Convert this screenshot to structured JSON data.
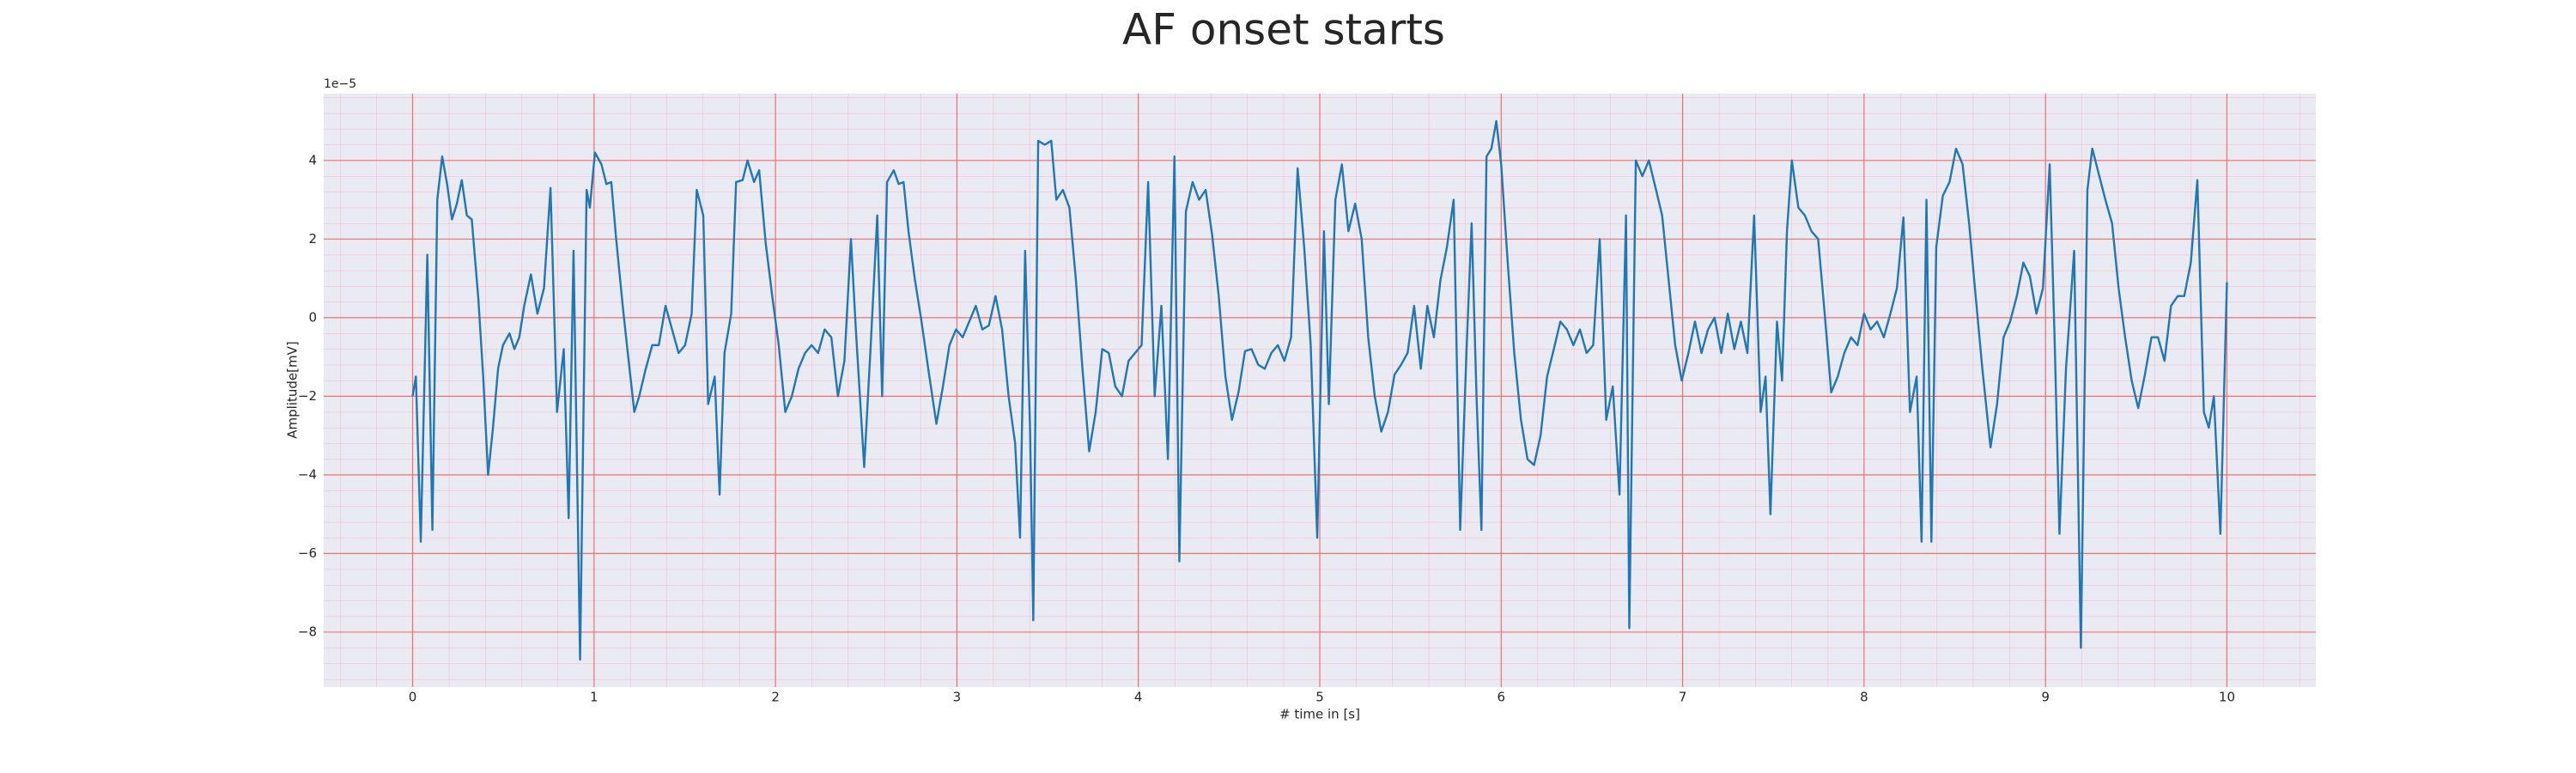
{
  "chart_data": {
    "type": "line",
    "title": "AF onset starts",
    "xlabel": "# time in [s]",
    "ylabel": "Amplitude[mV]",
    "y_offset_label": "1e−5",
    "color": "#1f77b4",
    "grid": true,
    "minor_grid": true,
    "xlim": [
      -0.49,
      10.49
    ],
    "ylim": [
      -9.4,
      5.7
    ],
    "xticks": [
      0,
      1,
      2,
      3,
      4,
      5,
      6,
      7,
      8,
      9,
      10
    ],
    "yticks": [
      {
        "value": -8,
        "label": "−8"
      },
      {
        "value": -6,
        "label": "−6"
      },
      {
        "value": -4,
        "label": "−4"
      },
      {
        "value": -2,
        "label": "−2"
      },
      0,
      2,
      4
    ],
    "x": [
      0,
      0.018,
      0.045,
      0.081,
      0.109,
      0.136,
      0.163,
      0.19,
      0.217,
      0.244,
      0.271,
      0.299,
      0.326,
      0.362,
      0.389,
      0.416,
      0.443,
      0.471,
      0.498,
      0.534,
      0.561,
      0.588,
      0.615,
      0.652,
      0.688,
      0.724,
      0.76,
      0.796,
      0.833,
      0.86,
      0.887,
      0.923,
      0.959,
      0.977,
      1.005,
      1.041,
      1.068,
      1.095,
      1.122,
      1.158,
      1.186,
      1.222,
      1.249,
      1.285,
      1.321,
      1.357,
      1.394,
      1.43,
      1.466,
      1.502,
      1.538,
      1.566,
      1.602,
      1.629,
      1.665,
      1.692,
      1.719,
      1.756,
      1.783,
      1.819,
      1.846,
      1.882,
      1.91,
      1.946,
      1.982,
      2.018,
      2.054,
      2.09,
      2.127,
      2.163,
      2.199,
      2.235,
      2.271,
      2.308,
      2.344,
      2.38,
      2.416,
      2.443,
      2.489,
      2.525,
      2.561,
      2.588,
      2.615,
      2.652,
      2.679,
      2.706,
      2.733,
      2.769,
      2.805,
      2.842,
      2.887,
      2.923,
      2.959,
      2.995,
      3.032,
      3.068,
      3.104,
      3.14,
      3.176,
      3.213,
      3.249,
      3.285,
      3.321,
      3.348,
      3.376,
      3.403,
      3.421,
      3.448,
      3.484,
      3.52,
      3.548,
      3.584,
      3.62,
      3.656,
      3.692,
      3.729,
      3.765,
      3.801,
      3.837,
      3.873,
      3.91,
      3.946,
      3.982,
      4.018,
      4.054,
      4.09,
      4.127,
      4.163,
      4.199,
      4.226,
      4.262,
      4.299,
      4.335,
      4.371,
      4.407,
      4.443,
      4.48,
      4.516,
      4.552,
      4.588,
      4.624,
      4.661,
      4.697,
      4.733,
      4.769,
      4.805,
      4.842,
      4.878,
      4.914,
      4.95,
      4.986,
      5.023,
      5.05,
      5.086,
      5.122,
      5.158,
      5.195,
      5.231,
      5.267,
      5.303,
      5.339,
      5.376,
      5.412,
      5.448,
      5.484,
      5.52,
      5.557,
      5.593,
      5.629,
      5.665,
      5.701,
      5.738,
      5.774,
      5.81,
      5.837,
      5.864,
      5.891,
      5.919,
      5.946,
      5.973,
      6.0,
      6.036,
      6.072,
      6.109,
      6.145,
      6.181,
      6.217,
      6.253,
      6.29,
      6.326,
      6.362,
      6.398,
      6.434,
      6.471,
      6.507,
      6.543,
      6.579,
      6.615,
      6.652,
      6.688,
      6.706,
      6.742,
      6.778,
      6.814,
      6.851,
      6.887,
      6.923,
      6.959,
      6.995,
      7.032,
      7.068,
      7.104,
      7.14,
      7.176,
      7.213,
      7.249,
      7.285,
      7.321,
      7.357,
      7.394,
      7.43,
      7.457,
      7.484,
      7.52,
      7.548,
      7.575,
      7.602,
      7.638,
      7.674,
      7.71,
      7.747,
      7.783,
      7.819,
      7.855,
      7.891,
      7.928,
      7.964,
      8.0,
      8.036,
      8.072,
      8.109,
      8.145,
      8.181,
      8.217,
      8.253,
      8.29,
      8.317,
      8.344,
      8.371,
      8.398,
      8.434,
      8.471,
      8.507,
      8.543,
      8.579,
      8.615,
      8.652,
      8.697,
      8.733,
      8.769,
      8.805,
      8.842,
      8.878,
      8.914,
      8.95,
      8.986,
      9.023,
      9.05,
      9.077,
      9.113,
      9.158,
      9.195,
      9.231,
      9.258,
      9.294,
      9.33,
      9.367,
      9.403,
      9.439,
      9.475,
      9.511,
      9.548,
      9.584,
      9.62,
      9.656,
      9.692,
      9.729,
      9.765,
      9.801,
      9.837,
      9.873,
      9.9,
      9.928,
      9.964,
      10.0
    ],
    "values": [
      -2,
      -1.5,
      -5.7,
      1.6,
      -5.4,
      3.0,
      4.1,
      3.4,
      2.5,
      2.9,
      3.5,
      2.6,
      2.5,
      0.5,
      -1.5,
      -4.0,
      -2.8,
      -1.3,
      -0.7,
      -0.4,
      -0.8,
      -0.5,
      0.3,
      1.1,
      0.1,
      0.75,
      3.3,
      -2.4,
      -0.8,
      -5.1,
      1.7,
      -8.7,
      3.25,
      2.8,
      4.2,
      3.9,
      3.4,
      3.45,
      2.0,
      0.3,
      -0.9,
      -2.4,
      -2.0,
      -1.3,
      -0.7,
      -0.7,
      0.3,
      -0.3,
      -0.9,
      -0.7,
      0.1,
      3.25,
      2.6,
      -2.2,
      -1.5,
      -4.5,
      -0.9,
      0.1,
      3.45,
      3.5,
      4.0,
      3.45,
      3.75,
      1.9,
      0.55,
      -0.7,
      -2.4,
      -2.0,
      -1.3,
      -0.9,
      -0.7,
      -0.9,
      -0.3,
      -0.5,
      -2.0,
      -1.1,
      2.0,
      -0.3,
      -3.8,
      -0.7,
      2.6,
      -2.0,
      3.45,
      3.75,
      3.4,
      3.45,
      2.2,
      0.95,
      -0.1,
      -1.3,
      -2.7,
      -1.75,
      -0.7,
      -0.3,
      -0.5,
      -0.1,
      0.3,
      -0.3,
      -0.2,
      0.55,
      -0.3,
      -2.0,
      -3.2,
      -5.6,
      1.7,
      -2.8,
      -7.7,
      4.5,
      4.4,
      4.5,
      3.0,
      3.25,
      2.8,
      0.95,
      -1.3,
      -3.4,
      -2.4,
      -0.8,
      -0.9,
      -1.75,
      -2.0,
      -1.1,
      -0.9,
      -0.7,
      3.45,
      -2.0,
      0.3,
      -3.6,
      4.1,
      -6.2,
      2.7,
      3.45,
      3.0,
      3.25,
      2.1,
      0.55,
      -1.5,
      -2.6,
      -1.9,
      -0.85,
      -0.8,
      -1.2,
      -1.3,
      -0.9,
      -0.7,
      -1.1,
      -0.5,
      3.8,
      1.8,
      -0.7,
      -5.6,
      2.2,
      -2.2,
      3.0,
      3.9,
      2.2,
      2.9,
      2.0,
      -0.5,
      -2.0,
      -2.9,
      -2.4,
      -1.45,
      -1.2,
      -0.9,
      0.3,
      -1.3,
      0.3,
      -0.5,
      0.95,
      1.8,
      3.0,
      -5.4,
      -0.7,
      2.4,
      -2.0,
      -5.4,
      4.1,
      4.3,
      5.0,
      3.9,
      1.4,
      -0.9,
      -2.6,
      -3.6,
      -3.75,
      -3.0,
      -1.5,
      -0.8,
      -0.1,
      -0.3,
      -0.7,
      -0.3,
      -0.9,
      -0.7,
      2.0,
      -2.6,
      -1.75,
      -4.5,
      2.6,
      -7.9,
      4.0,
      3.6,
      4.0,
      3.3,
      2.6,
      0.95,
      -0.7,
      -1.6,
      -0.9,
      -0.1,
      -0.9,
      -0.3,
      0.0,
      -0.9,
      0.1,
      -0.8,
      -0.1,
      -0.9,
      2.6,
      -2.4,
      -1.5,
      -5.0,
      -0.1,
      -1.6,
      2.2,
      4.0,
      2.8,
      2.6,
      2.2,
      2.0,
      0.1,
      -1.9,
      -1.5,
      -0.9,
      -0.5,
      -0.7,
      0.1,
      -0.3,
      -0.1,
      -0.5,
      0.1,
      0.75,
      2.55,
      -2.4,
      -1.5,
      -5.7,
      3.0,
      -5.7,
      1.8,
      3.1,
      3.45,
      4.3,
      3.9,
      2.4,
      0.55,
      -1.3,
      -3.3,
      -2.2,
      -0.5,
      -0.1,
      0.55,
      1.4,
      1.05,
      0.1,
      0.75,
      3.9,
      -0.5,
      -5.5,
      -1.3,
      1.7,
      -8.4,
      3.25,
      4.3,
      3.65,
      3.0,
      2.4,
      0.75,
      -0.5,
      -1.6,
      -2.3,
      -1.45,
      -0.5,
      -0.5,
      -1.1,
      0.3,
      0.55,
      0.55,
      1.4,
      3.5,
      -2.4,
      -2.8,
      -2.0,
      -5.5,
      0.9
    ]
  }
}
